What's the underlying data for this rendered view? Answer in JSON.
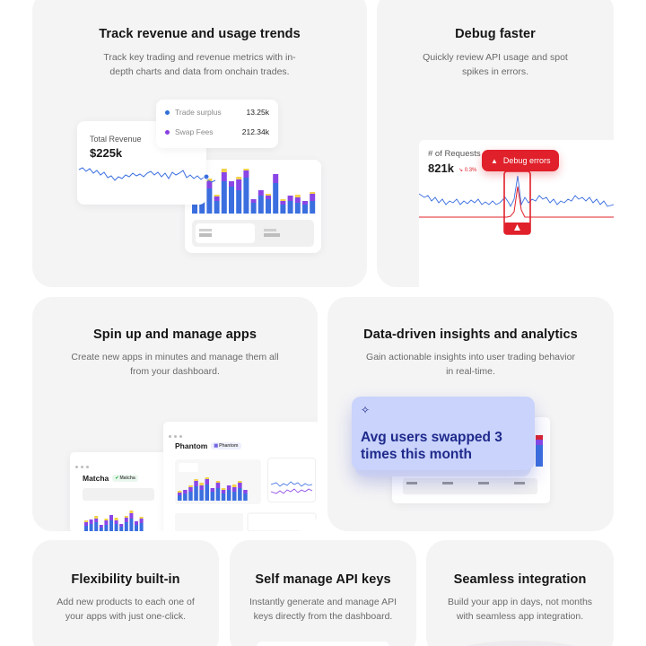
{
  "cards": {
    "revenue": {
      "title": "Track revenue and usage trends",
      "desc_line1": "Track key trading and revenue metrics with in-",
      "desc_line2": "depth charts and data from onchain trades.",
      "tooltip": {
        "rows": [
          {
            "label": "Trade surplus",
            "value": "13.25k",
            "color": "#2f6fd6"
          },
          {
            "label": "Swap Fees",
            "value": "212.34k",
            "color": "#8b3fe0"
          }
        ]
      },
      "total": {
        "label": "Total Revenue",
        "value": "$225k"
      }
    },
    "debug": {
      "title": "Debug faster",
      "desc_line1": "Quickly review API usage and spot",
      "desc_line2": "spikes in errors.",
      "requests_label": "# of Requests",
      "requests_value": "821k",
      "requests_change": "↘ 0.3%",
      "badge_label": "Debug errors"
    },
    "apps": {
      "title": "Spin up and manage apps",
      "desc_line1": "Create new apps in minutes and manage them all",
      "desc_line2": "from your dashboard.",
      "app_a": {
        "name": "Matcha",
        "pill": "Matcha"
      },
      "app_b": {
        "name": "Phantom",
        "pill": "Phantom"
      }
    },
    "insights": {
      "title": "Data-driven insights and analytics",
      "desc_line1": "Gain actionable insights into user trading behavior",
      "desc_line2": "in real-time.",
      "insight_line1": "Avg users swapped 3",
      "insight_line2": "times this month"
    },
    "flex": {
      "title": "Flexibility built-in",
      "desc_line1": "Add new products to each one of",
      "desc_line2": "your apps with just one-click."
    },
    "keys": {
      "title": "Self manage API keys",
      "desc_line1": "Instantly generate and manage API",
      "desc_line2": "keys directly from the dashboard."
    },
    "integration": {
      "title": "Seamless integration",
      "desc_line1": "Build your app in days, not months",
      "desc_line2": "with seamless app integration."
    }
  },
  "colors": {
    "blue": "#3b6fe0",
    "purple": "#8a45e6",
    "yellow": "#f2d14a",
    "red": "#e0202a",
    "card_bg": "#f4f4f5"
  }
}
